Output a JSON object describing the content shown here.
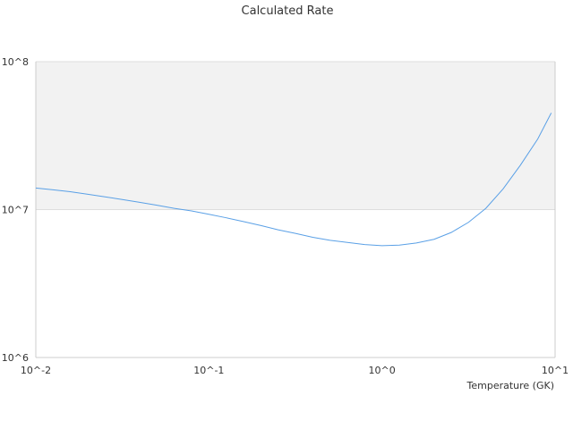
{
  "chart_data": {
    "type": "line",
    "title": "Calculated Rate",
    "xlabel": "Temperature (GK)",
    "ylabel": "",
    "x_scale": "log",
    "y_scale": "log",
    "xlim": [
      0.01,
      10
    ],
    "ylim": [
      1000000,
      100000000
    ],
    "x_ticks": [
      {
        "value": 0.01,
        "label": "10^-2"
      },
      {
        "value": 0.1,
        "label": "10^-1"
      },
      {
        "value": 1,
        "label": "10^0"
      },
      {
        "value": 10,
        "label": "10^1"
      }
    ],
    "y_ticks": [
      {
        "value": 1000000,
        "label": "10^6"
      },
      {
        "value": 10000000,
        "label": "10^7"
      },
      {
        "value": 100000000,
        "label": "10^8"
      }
    ],
    "grid": true,
    "legend": "none",
    "colors": {
      "line": "#5aa0e6",
      "band": "#f2f2f2",
      "grid": "#dddddd",
      "axis": "#cccccc"
    },
    "band": {
      "y_from": 10000000,
      "y_to": 100000000
    },
    "series": [
      {
        "name": "",
        "x": [
          0.01,
          0.0126,
          0.0158,
          0.02,
          0.0251,
          0.0316,
          0.0398,
          0.0501,
          0.0631,
          0.0794,
          0.1,
          0.126,
          0.158,
          0.2,
          0.251,
          0.316,
          0.398,
          0.501,
          0.631,
          0.794,
          1.0,
          1.26,
          1.58,
          2.0,
          2.51,
          3.16,
          3.98,
          5.01,
          6.31,
          7.94,
          9.5
        ],
        "y": [
          14000000,
          13600000,
          13200000,
          12700000,
          12200000,
          11700000,
          11200000,
          10700000,
          10200000,
          9800000,
          9300000,
          8800000,
          8300000,
          7800000,
          7300000,
          6900000,
          6500000,
          6200000,
          6000000,
          5800000,
          5700000,
          5750000,
          5950000,
          6300000,
          7000000,
          8200000,
          10200000,
          13800000,
          20000000,
          30000000,
          45000000
        ]
      }
    ]
  }
}
